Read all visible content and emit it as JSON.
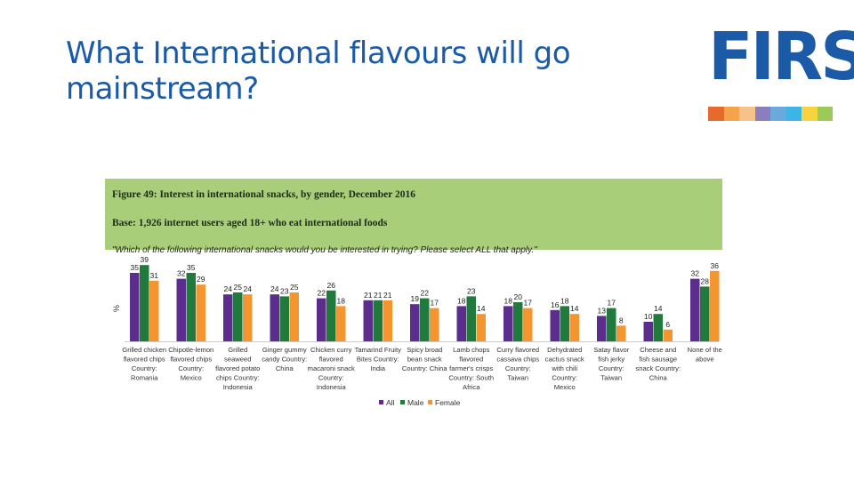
{
  "slide": {
    "title": "What International flavours will go mainstream?"
  },
  "logo": {
    "text": "FIRSt",
    "strip_colors": [
      "#e8692d",
      "#f4a34b",
      "#f6c28b",
      "#8a7ebf",
      "#6aa9dc",
      "#3cb4e6",
      "#f7d43e",
      "#9acb5a"
    ]
  },
  "colors": {
    "brand": "#1a5aa6",
    "header_bg": "#a9ce79",
    "all": "#5b2d8c",
    "male": "#1f7a3c",
    "female": "#f4952f"
  },
  "figure": {
    "title": "Figure 49: Interest in international snacks, by gender, December 2016",
    "base": "Base: 1,926 internet users aged 18+ who eat international foods",
    "question": "\"Which of the following international snacks would you be interested in trying? Please select ALL that apply.\""
  },
  "chart_data": {
    "type": "bar",
    "ylabel": "%",
    "ylim": [
      0,
      40
    ],
    "categories": [
      "Grilled chicken flavored chips Country: Romania",
      "Chipotle-lemon flavored chips Country: Mexico",
      "Grilled seaweed flavored potato chips Country: Indonesia",
      "Ginger gummy candy Country: China",
      "Chicken curry flavored macaroni snack Country: Indonesia",
      "Tamarind Fruity Bites Country: India",
      "Spicy broad bean snack Country: China",
      "Lamb chops flavored farmer's crisps Country: South Africa",
      "Curry flavored cassava chips Country: Taiwan",
      "Dehydrated cactus snack with chili Country: Mexico",
      "Satay flavor fish jerky Country: Taiwan",
      "Cheese and fish sausage snack Country: China",
      "None of the above"
    ],
    "category_lines": [
      [
        "Grilled chicken",
        "flavored chips",
        "Country:",
        "Romania"
      ],
      [
        "Chipotle-lemon",
        "flavored chips",
        "Country:",
        "Mexico"
      ],
      [
        "Grilled",
        "seaweed",
        "flavored potato",
        "chips Country:",
        "Indonesia"
      ],
      [
        "Ginger gummy",
        "candy Country:",
        "China"
      ],
      [
        "Chicken curry",
        "flavored",
        "macaroni snack",
        "Country:",
        "Indonesia"
      ],
      [
        "Tamarind Fruity",
        "Bites Country:",
        "India"
      ],
      [
        "Spicy broad",
        "bean snack",
        "Country: China"
      ],
      [
        "Lamb chops",
        "flavored",
        "farmer's crisps",
        "Country: South",
        "Africa"
      ],
      [
        "Curry flavored",
        "cassava chips",
        "Country:",
        "Taiwan"
      ],
      [
        "Dehydrated",
        "cactus snack",
        "with chili",
        "Country:",
        "Mexico"
      ],
      [
        "Satay flavor",
        "fish jerky",
        "Country:",
        "Taiwan"
      ],
      [
        "Cheese and",
        "fish sausage",
        "snack Country:",
        "China"
      ],
      [
        "None of the",
        "above"
      ]
    ],
    "series": [
      {
        "name": "All",
        "values": [
          35,
          32,
          24,
          24,
          22,
          21,
          19,
          18,
          18,
          16,
          13,
          10,
          32
        ]
      },
      {
        "name": "Male",
        "values": [
          39,
          35,
          25,
          23,
          26,
          21,
          22,
          23,
          20,
          18,
          17,
          14,
          28
        ]
      },
      {
        "name": "Female",
        "values": [
          31,
          29,
          24,
          25,
          18,
          21,
          17,
          14,
          17,
          14,
          8,
          6,
          36
        ]
      }
    ],
    "legend_position": "bottom",
    "grid": false
  }
}
